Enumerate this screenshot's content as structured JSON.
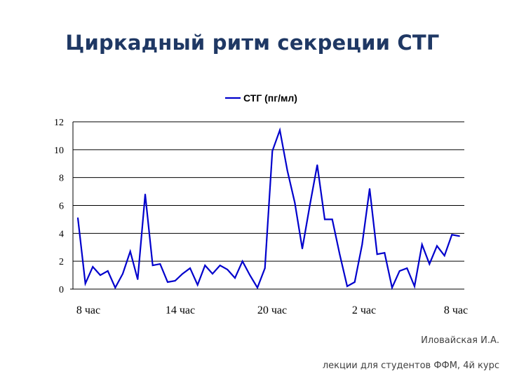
{
  "title": "Циркадный ритм секреции СТГ",
  "footer": {
    "author": "Иловайская И.А.",
    "course": "лекции для студентов ФФМ, 4й курс"
  },
  "colors": {
    "title": "#1f3864",
    "series": "#0000cc",
    "grid": "#000000"
  },
  "chart_data": {
    "type": "line",
    "legend_position": "top-center",
    "grid": true,
    "ylim": [
      0,
      12
    ],
    "yticks": [
      "0",
      "2",
      "4",
      "6",
      "8",
      "10",
      "12"
    ],
    "x_tick_labels": [
      "8 час",
      "14 час",
      "20 час",
      "2 час",
      "8 час"
    ],
    "series": [
      {
        "name": "СТГ (пг/мл)",
        "values": [
          5.1,
          0.4,
          1.6,
          1.0,
          1.3,
          0.1,
          1.1,
          2.7,
          0.7,
          6.8,
          1.7,
          1.8,
          0.5,
          0.6,
          1.1,
          1.5,
          0.3,
          1.7,
          1.1,
          1.7,
          1.4,
          0.8,
          2.0,
          1.0,
          0.1,
          1.5,
          9.9,
          11.4,
          8.5,
          6.2,
          2.9,
          6.0,
          8.9,
          5.0,
          5.0,
          2.5,
          0.2,
          0.5,
          3.2,
          7.2,
          2.5,
          2.6,
          0.1,
          1.3,
          1.5,
          0.2,
          3.2,
          1.8,
          3.1,
          2.4,
          3.9,
          3.8
        ]
      }
    ]
  }
}
